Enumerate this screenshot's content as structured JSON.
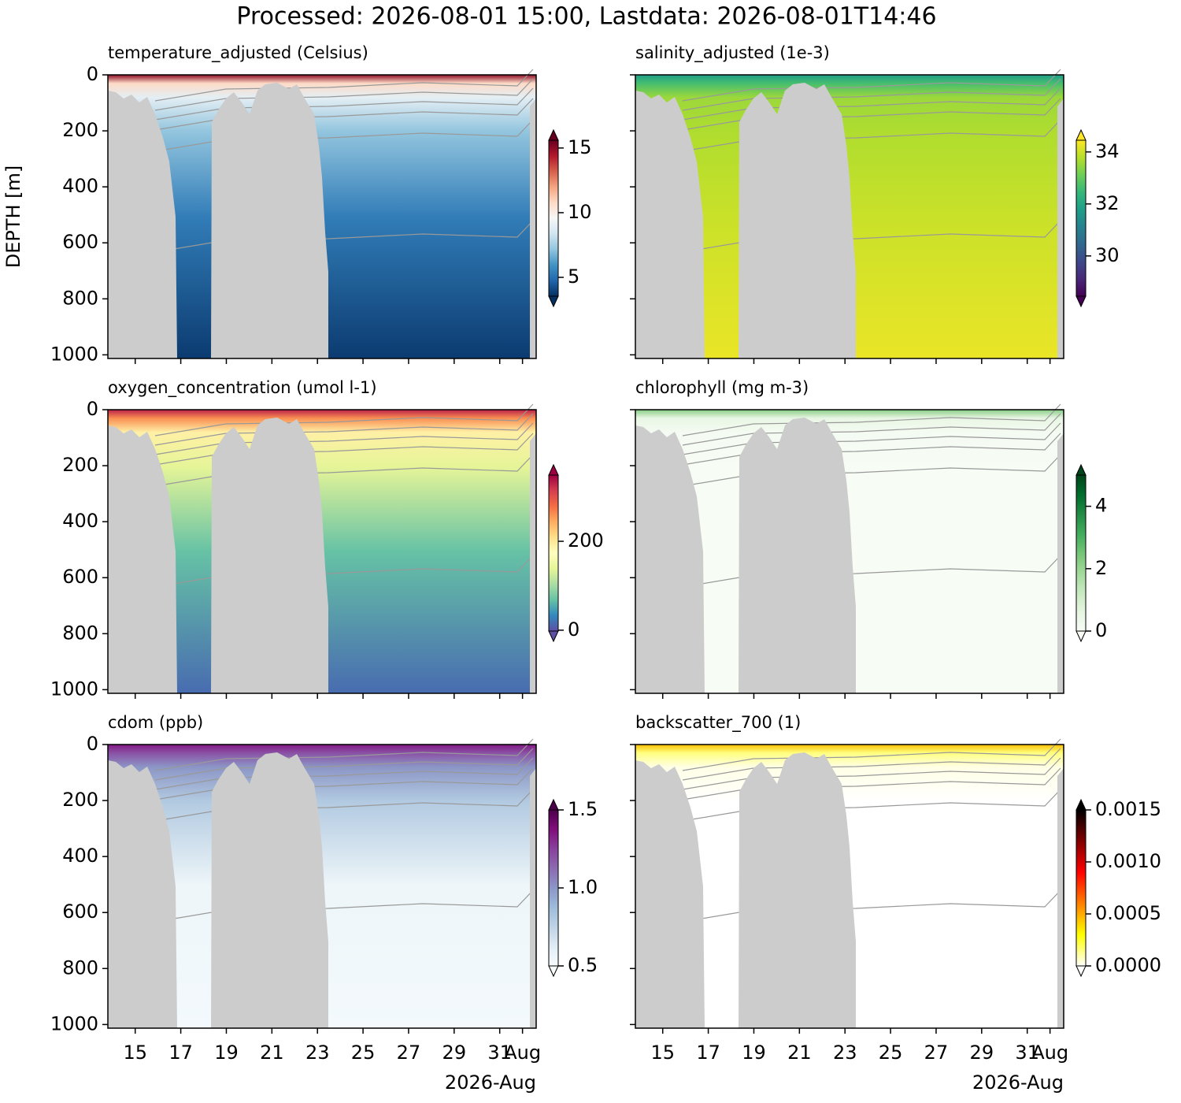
{
  "title": "Processed: 2026-08-01 15:00, Lastdata: 2026-08-01T14:46",
  "chart_data": [
    {
      "type": "heatmap",
      "title": "temperature_adjusted (Celsius)",
      "ylabel": "DEPTH [m]",
      "ylim": [
        0,
        1013
      ],
      "invert_y": true,
      "yticks": [
        0,
        200,
        400,
        600,
        800,
        1000
      ],
      "show_ytick_labels": true,
      "xlim": [
        13.8,
        32.6
      ],
      "xticks": [
        15,
        17,
        19,
        21,
        23,
        25,
        27,
        29,
        31,
        {
          "value": 32,
          "label": "Aug"
        }
      ],
      "show_xtick_labels": false,
      "clim": [
        3.54,
        15.6
      ],
      "cticks": [
        5,
        10,
        15
      ],
      "colormap": [
        "#053061",
        "#2166ac",
        "#4393c3",
        "#92c5de",
        "#d1e5f0",
        "#f7f7f7",
        "#fddbc7",
        "#f4a582",
        "#d6604d",
        "#b2182b",
        "#67001f"
      ]
    },
    {
      "type": "heatmap",
      "title": "salinity_adjusted (1e-3)",
      "ylim": [
        0,
        1013
      ],
      "invert_y": true,
      "yticks": [
        0,
        200,
        400,
        600,
        800,
        1000
      ],
      "show_ytick_labels": false,
      "xlim": [
        13.8,
        32.6
      ],
      "xticks": [
        15,
        17,
        19,
        21,
        23,
        25,
        27,
        29,
        31,
        {
          "value": 32,
          "label": "Aug"
        }
      ],
      "show_xtick_labels": false,
      "clim": [
        28.45,
        34.45
      ],
      "cticks": [
        30,
        32,
        34
      ],
      "colormap": [
        "#440154",
        "#482878",
        "#3e4989",
        "#31688e",
        "#26828e",
        "#1f9e89",
        "#35b779",
        "#6ece58",
        "#b5de2b",
        "#fde725"
      ]
    },
    {
      "type": "heatmap",
      "title": "oxygen_concentration (umol l-1)",
      "ylim": [
        0,
        1013
      ],
      "invert_y": true,
      "yticks": [
        0,
        200,
        400,
        600,
        800,
        1000
      ],
      "show_ytick_labels": true,
      "xlim": [
        13.8,
        32.6
      ],
      "xticks": [
        15,
        17,
        19,
        21,
        23,
        25,
        27,
        29,
        31,
        {
          "value": 32,
          "label": "Aug"
        }
      ],
      "show_xtick_labels": false,
      "clim": [
        -2,
        349
      ],
      "cticks": [
        0,
        200
      ],
      "colormap": [
        "#5e4fa2",
        "#3288bd",
        "#66c2a5",
        "#abdda4",
        "#e6f598",
        "#ffffbf",
        "#fee08b",
        "#fdae61",
        "#f46d43",
        "#d53e4f",
        "#9e0142"
      ]
    },
    {
      "type": "heatmap",
      "title": "chlorophyll (mg m-3)",
      "ylim": [
        0,
        1013
      ],
      "invert_y": true,
      "yticks": [
        0,
        200,
        400,
        600,
        800,
        1000
      ],
      "show_ytick_labels": false,
      "xlim": [
        13.8,
        32.6
      ],
      "xticks": [
        15,
        17,
        19,
        21,
        23,
        25,
        27,
        29,
        31,
        {
          "value": 32,
          "label": "Aug"
        }
      ],
      "show_xtick_labels": false,
      "clim": [
        0,
        5
      ],
      "cticks": [
        0,
        2,
        4
      ],
      "colormap": [
        "#f7fcf5",
        "#e5f5e0",
        "#c7e9c0",
        "#a1d99b",
        "#74c476",
        "#41ab5d",
        "#238b45",
        "#006d2c",
        "#00441b"
      ]
    },
    {
      "type": "heatmap",
      "title": "cdom (ppb)",
      "ylim": [
        0,
        1013
      ],
      "invert_y": true,
      "yticks": [
        0,
        200,
        400,
        600,
        800,
        1000
      ],
      "show_ytick_labels": true,
      "xlim": [
        13.8,
        32.6
      ],
      "xticks": [
        15,
        17,
        19,
        21,
        23,
        25,
        27,
        29,
        31,
        {
          "value": 32,
          "label": "Aug"
        }
      ],
      "show_xtick_labels": true,
      "x_offset_label": "2026-Aug",
      "clim": [
        0.5,
        1.5
      ],
      "cticks": [
        0.5,
        {
          "value": 1,
          "label": "1.0"
        },
        1.5
      ],
      "colormap": [
        "#f7fcfd",
        "#e0ecf4",
        "#bfd3e6",
        "#9ebcda",
        "#8c96c6",
        "#8c6bb1",
        "#88419d",
        "#810f7c",
        "#4d004b"
      ]
    },
    {
      "type": "heatmap",
      "title": "backscatter_700 (1)",
      "ylim": [
        0,
        1013
      ],
      "invert_y": true,
      "yticks": [
        0,
        200,
        400,
        600,
        800,
        1000
      ],
      "show_ytick_labels": false,
      "xlim": [
        13.8,
        32.6
      ],
      "xticks": [
        15,
        17,
        19,
        21,
        23,
        25,
        27,
        29,
        31,
        {
          "value": 32,
          "label": "Aug"
        }
      ],
      "show_xtick_labels": true,
      "x_offset_label": "2026-Aug",
      "clim": [
        0,
        0.0015
      ],
      "cticks": [
        {
          "value": 0,
          "label": "0.0000"
        },
        {
          "value": 0.0005,
          "label": "0.0005"
        },
        {
          "value": 0.001,
          "label": "0.0010"
        },
        {
          "value": 0.0015,
          "label": "0.0015"
        }
      ],
      "colormap": [
        "#ffffff",
        "#ffff80",
        "#ffff00",
        "#ffc000",
        "#ff8000",
        "#ff4000",
        "#ff0000",
        "#c00000",
        "#800000",
        "#400000",
        "#000000"
      ]
    }
  ]
}
